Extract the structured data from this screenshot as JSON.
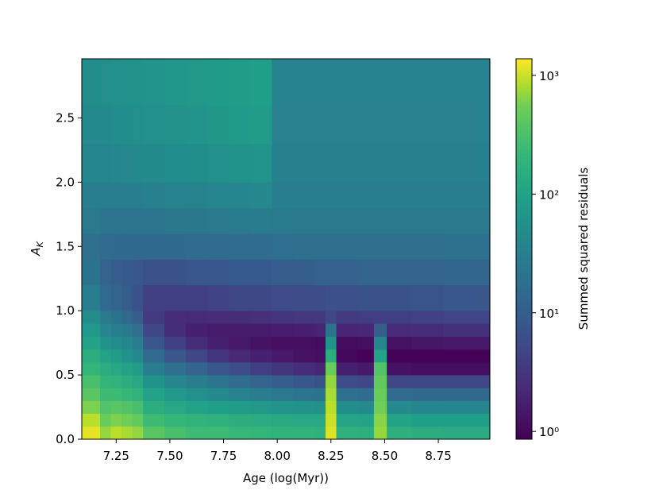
{
  "chart_data": {
    "type": "heatmap",
    "x_label": "Age (log(Myr))",
    "y_label_main": "A",
    "y_label_sub": "K",
    "colorbar_label": "Summed squared residuals",
    "colormap": "viridis",
    "color_scale": "log",
    "x_edges": [
      7.09,
      7.175,
      7.225,
      7.275,
      7.325,
      7.375,
      7.475,
      7.575,
      7.675,
      7.775,
      7.875,
      7.975,
      8.075,
      8.175,
      8.225,
      8.275,
      8.375,
      8.45,
      8.51,
      8.625,
      8.775,
      8.99
    ],
    "y_edges": [
      0,
      0.1,
      0.2,
      0.3,
      0.4,
      0.5,
      0.6,
      0.7,
      0.8,
      0.9,
      1.0,
      1.2,
      1.4,
      1.6,
      1.8,
      2.0,
      2.3,
      2.6,
      2.96
    ],
    "z": [
      [
        1200,
        700,
        900,
        800,
        700,
        400,
        300,
        250,
        250,
        220,
        200,
        180,
        180,
        170,
        1100,
        170,
        160,
        700,
        160,
        150,
        140
      ],
      [
        900,
        500,
        600,
        550,
        450,
        250,
        200,
        180,
        170,
        150,
        140,
        130,
        120,
        120,
        1000,
        110,
        100,
        650,
        100,
        90,
        90
      ],
      [
        600,
        350,
        400,
        350,
        300,
        150,
        120,
        100,
        90,
        80,
        70,
        65,
        60,
        55,
        900,
        50,
        45,
        550,
        45,
        40,
        40
      ],
      [
        400,
        250,
        250,
        220,
        180,
        100,
        70,
        55,
        45,
        35,
        30,
        25,
        22,
        20,
        800,
        18,
        16,
        500,
        15,
        14,
        14
      ],
      [
        300,
        200,
        180,
        150,
        120,
        60,
        40,
        30,
        22,
        16,
        12,
        10,
        8,
        7,
        700,
        6,
        5,
        450,
        5,
        5,
        5
      ],
      [
        200,
        150,
        120,
        100,
        80,
        30,
        18,
        12,
        8,
        6,
        4,
        3,
        2.5,
        2,
        500,
        1.8,
        1.5,
        350,
        1.3,
        1.2,
        1.2
      ],
      [
        150,
        100,
        80,
        60,
        45,
        15,
        8,
        5,
        3,
        2.2,
        1.8,
        1.5,
        1.3,
        1.2,
        150,
        1,
        0.9,
        100,
        0.9,
        0.9,
        0.9
      ],
      [
        100,
        60,
        50,
        40,
        30,
        8,
        4,
        2.5,
        1.8,
        1.5,
        1.3,
        1.2,
        1.2,
        1.1,
        60,
        1.1,
        1.2,
        40,
        1.3,
        1.4,
        1.5
      ],
      [
        70,
        40,
        30,
        25,
        18,
        5,
        2.5,
        1.8,
        1.6,
        1.6,
        1.6,
        1.7,
        1.8,
        1.9,
        20,
        2,
        2.1,
        10,
        2.3,
        2.5,
        2.8
      ],
      [
        50,
        25,
        20,
        15,
        10,
        3.5,
        2.5,
        2.3,
        2.4,
        2.5,
        2.7,
        3,
        3.2,
        3.4,
        5,
        3.6,
        3.8,
        4,
        4,
        4.3,
        4.8
      ],
      [
        30,
        15,
        12,
        10,
        7,
        4,
        4,
        4,
        4.5,
        5,
        5,
        5.5,
        6,
        6,
        6.5,
        6.5,
        7,
        7,
        7,
        7.5,
        8
      ],
      [
        20,
        12,
        10,
        9,
        8,
        7,
        7,
        8,
        8,
        9,
        9,
        10,
        10,
        11,
        11,
        11,
        12,
        12,
        12,
        12,
        13
      ],
      [
        18,
        15,
        14,
        14,
        14,
        14,
        14,
        15,
        15,
        16,
        16,
        17,
        18,
        18,
        18,
        18,
        18,
        18,
        18,
        18,
        19
      ],
      [
        25,
        22,
        22,
        22,
        22,
        22,
        23,
        24,
        25,
        26,
        27,
        26,
        25,
        25,
        25,
        25,
        25,
        25,
        25,
        25,
        25
      ],
      [
        30,
        30,
        30,
        30,
        30,
        32,
        34,
        36,
        38,
        40,
        42,
        30,
        30,
        30,
        30,
        30,
        30,
        30,
        30,
        30,
        30
      ],
      [
        38,
        38,
        40,
        42,
        44,
        46,
        48,
        50,
        55,
        60,
        65,
        32,
        32,
        32,
        32,
        32,
        32,
        32,
        32,
        32,
        32
      ],
      [
        45,
        45,
        48,
        50,
        52,
        55,
        58,
        62,
        68,
        75,
        80,
        33,
        33,
        33,
        33,
        33,
        33,
        33,
        33,
        33,
        33
      ],
      [
        50,
        52,
        55,
        58,
        60,
        62,
        66,
        70,
        78,
        85,
        90,
        34,
        34,
        34,
        34,
        34,
        34,
        34,
        34,
        34,
        34
      ]
    ],
    "xlim": [
      7.09,
      8.99
    ],
    "ylim": [
      0,
      2.96
    ],
    "clim": [
      0.86,
      1380
    ],
    "xticks": [
      7.25,
      {
        "value": 7.5,
        "label": "7.50"
      },
      7.75,
      {
        "value": 8.0,
        "label": "8.00"
      },
      8.25,
      {
        "value": 8.5,
        "label": "8.50"
      },
      8.75
    ],
    "yticks": [
      {
        "value": 0,
        "label": "0.0"
      },
      0.5,
      {
        "value": 1.0,
        "label": "1.0"
      },
      1.5,
      {
        "value": 2.0,
        "label": "2.0"
      },
      2.5
    ],
    "cticks": [
      {
        "value": 1,
        "label": "10⁰"
      },
      {
        "value": 10,
        "label": "10¹"
      },
      {
        "value": 100,
        "label": "10²"
      },
      {
        "value": 1000,
        "label": "10³"
      }
    ]
  }
}
